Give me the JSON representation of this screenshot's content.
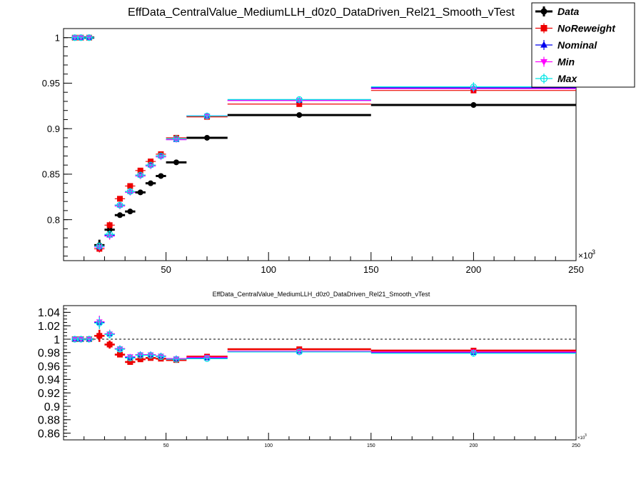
{
  "main_title": "EffData_CentralValue_MediumLLH_d0z0_DataDriven_Rel21_Smooth_vTest",
  "ratio_title": "EffData_CentralValue_MediumLLH_d0z0_DataDriven_Rel21_Smooth_vTest",
  "x_exponent_label": "×10",
  "x_exponent_power": "3",
  "colors": {
    "Data": "#000000",
    "NoReweight": "#ee0000",
    "Nominal": "#0000ee",
    "Min": "#ff00ff",
    "Max": "#00e5e5"
  },
  "chart_data": [
    {
      "type": "scatter",
      "panel": "top",
      "xlim": [
        0,
        250
      ],
      "ylim": [
        0.755,
        1.01
      ],
      "x_ticks": [
        50,
        100,
        150,
        200,
        250
      ],
      "x_tick_labels": [
        "50",
        "100",
        "150",
        "200",
        "250"
      ],
      "y_ticks": [
        0.8,
        0.85,
        0.9,
        0.95,
        1
      ],
      "y_tick_labels": [
        "0.8",
        "0.85",
        "0.9",
        "0.95",
        "1"
      ],
      "grid": false,
      "legend_position": "top-right",
      "bins": [
        [
          4,
          7
        ],
        [
          7,
          10
        ],
        [
          10,
          15
        ],
        [
          15,
          20
        ],
        [
          20,
          25
        ],
        [
          25,
          30
        ],
        [
          30,
          35
        ],
        [
          35,
          40
        ],
        [
          40,
          45
        ],
        [
          45,
          50
        ],
        [
          50,
          60
        ],
        [
          60,
          80
        ],
        [
          80,
          150
        ],
        [
          150,
          250
        ]
      ],
      "series": [
        {
          "name": "Data",
          "marker": "circle",
          "values": [
            1.0,
            1.0,
            1.0,
            0.772,
            0.789,
            0.805,
            0.809,
            0.83,
            0.84,
            0.848,
            0.863,
            0.89,
            0.915,
            0.926
          ],
          "errors": [
            0.002,
            0.002,
            0.002,
            0.006,
            0.004,
            0.002,
            0.002,
            0.002,
            0.002,
            0.002,
            0.001,
            0.001,
            0.001,
            0.002
          ]
        },
        {
          "name": "NoReweight",
          "marker": "square",
          "values": [
            1.0,
            1.0,
            1.0,
            0.768,
            0.794,
            0.823,
            0.837,
            0.854,
            0.864,
            0.872,
            0.89,
            0.913,
            0.927,
            0.942
          ],
          "errors": [
            0.002,
            0.002,
            0.002,
            0.004,
            0.004,
            0.003,
            0.003,
            0.002,
            0.002,
            0.002,
            0.002,
            0.002,
            0.002,
            0.003
          ]
        },
        {
          "name": "Nominal",
          "marker": "triangle-up",
          "values": [
            1.0,
            1.0,
            1.0,
            0.77,
            0.783,
            0.816,
            0.831,
            0.849,
            0.86,
            0.87,
            0.888,
            0.914,
            0.931,
            0.945
          ],
          "errors": [
            0.002,
            0.002,
            0.002,
            0.004,
            0.004,
            0.003,
            0.003,
            0.002,
            0.002,
            0.002,
            0.002,
            0.002,
            0.003,
            0.004
          ]
        },
        {
          "name": "Min",
          "marker": "triangle-down",
          "values": [
            1.0,
            1.0,
            1.0,
            0.77,
            0.782,
            0.815,
            0.83,
            0.848,
            0.859,
            0.869,
            0.888,
            0.914,
            0.931,
            0.944
          ],
          "errors": [
            0.002,
            0.002,
            0.002,
            0.004,
            0.004,
            0.003,
            0.003,
            0.002,
            0.002,
            0.002,
            0.002,
            0.002,
            0.003,
            0.004
          ]
        },
        {
          "name": "Max",
          "marker": "open-circle",
          "values": [
            1.0,
            1.0,
            1.0,
            0.771,
            0.784,
            0.816,
            0.831,
            0.849,
            0.86,
            0.87,
            0.889,
            0.914,
            0.932,
            0.946
          ],
          "errors": [
            0.002,
            0.002,
            0.002,
            0.004,
            0.004,
            0.003,
            0.003,
            0.002,
            0.002,
            0.002,
            0.002,
            0.002,
            0.003,
            0.005
          ]
        }
      ]
    },
    {
      "type": "scatter",
      "panel": "ratio",
      "xlim": [
        0,
        250
      ],
      "ylim": [
        0.85,
        1.05
      ],
      "reference_line": 1,
      "x_ticks": [
        50,
        100,
        150,
        200,
        250
      ],
      "x_tick_labels": [
        "50",
        "100",
        "150",
        "200",
        "250"
      ],
      "y_ticks": [
        0.86,
        0.88,
        0.9,
        0.92,
        0.94,
        0.96,
        0.98,
        1,
        1.02,
        1.04
      ],
      "y_tick_labels": [
        "0.86",
        "0.88",
        "0.9",
        "0.92",
        "0.94",
        "0.96",
        "0.98",
        "1",
        "1.02",
        "1.04"
      ],
      "grid": false,
      "bins": [
        [
          4,
          7
        ],
        [
          7,
          10
        ],
        [
          10,
          15
        ],
        [
          15,
          20
        ],
        [
          20,
          25
        ],
        [
          25,
          30
        ],
        [
          30,
          35
        ],
        [
          35,
          40
        ],
        [
          40,
          45
        ],
        [
          45,
          50
        ],
        [
          50,
          60
        ],
        [
          60,
          80
        ],
        [
          80,
          150
        ],
        [
          150,
          250
        ]
      ],
      "series": [
        {
          "name": "NoReweight",
          "marker": "square",
          "values": [
            1.0,
            1.0,
            1.0,
            1.005,
            0.992,
            0.977,
            0.966,
            0.97,
            0.972,
            0.971,
            0.969,
            0.974,
            0.985,
            0.983
          ],
          "errors": [
            0.002,
            0.002,
            0.002,
            0.009,
            0.006,
            0.004,
            0.004,
            0.003,
            0.003,
            0.003,
            0.003,
            0.002,
            0.002,
            0.003
          ]
        },
        {
          "name": "Nominal",
          "marker": "triangle-up",
          "values": [
            1.0,
            1.0,
            1.0,
            1.025,
            1.008,
            0.986,
            0.973,
            0.977,
            0.977,
            0.975,
            0.971,
            0.972,
            0.982,
            0.98
          ],
          "errors": [
            0.002,
            0.002,
            0.002,
            0.009,
            0.006,
            0.004,
            0.004,
            0.003,
            0.003,
            0.003,
            0.003,
            0.002,
            0.002,
            0.004
          ]
        },
        {
          "name": "Min",
          "marker": "triangle-down",
          "values": [
            1.0,
            1.0,
            1.0,
            1.026,
            1.008,
            0.986,
            0.974,
            0.977,
            0.977,
            0.975,
            0.971,
            0.973,
            0.982,
            0.981
          ],
          "errors": [
            0.002,
            0.002,
            0.002,
            0.009,
            0.006,
            0.004,
            0.004,
            0.003,
            0.003,
            0.003,
            0.003,
            0.002,
            0.002,
            0.004
          ]
        },
        {
          "name": "Max",
          "marker": "open-circle",
          "values": [
            1.0,
            1.0,
            1.0,
            1.024,
            1.007,
            0.985,
            0.972,
            0.976,
            0.976,
            0.974,
            0.97,
            0.971,
            0.981,
            0.979
          ],
          "errors": [
            0.002,
            0.002,
            0.002,
            0.009,
            0.006,
            0.004,
            0.004,
            0.003,
            0.003,
            0.003,
            0.003,
            0.002,
            0.002,
            0.005
          ]
        }
      ]
    }
  ]
}
